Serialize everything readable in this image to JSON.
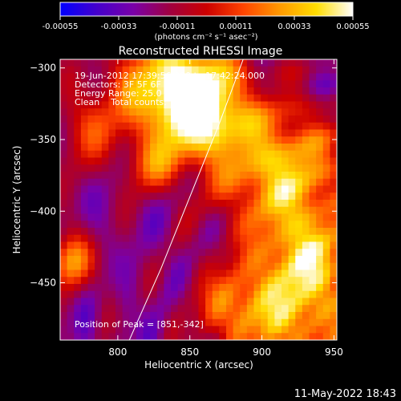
{
  "colorbar": {
    "ticks": [
      "-0.00055",
      "-0.00033",
      "-0.00011",
      "0.00011",
      "0.00033",
      "0.00055"
    ],
    "unit_label": "(photons cm⁻² s⁻¹ asec⁻²)",
    "colors": [
      "#0000ff",
      "#4400cc",
      "#7a00a8",
      "#a00040",
      "#cc0000",
      "#ff4400",
      "#ff9900",
      "#ffdd00",
      "#ffffff"
    ]
  },
  "chart_data": {
    "type": "heatmap",
    "title": "Reconstructed RHESSI Image",
    "xlabel": "Heliocentric X (arcsec)",
    "ylabel": "Heliocentric Y (arcsec)",
    "xlim": [
      760,
      952
    ],
    "ylim": [
      -490,
      -294
    ],
    "x_ticks": [
      800,
      850,
      900,
      950
    ],
    "y_ticks": [
      -300,
      -350,
      -400,
      -450
    ],
    "x_tick_labels": [
      "800",
      "850",
      "900",
      "950"
    ],
    "y_tick_labels": [
      "−300",
      "−350",
      "−400",
      "−450"
    ],
    "annotations": {
      "time_range": "19-Jun-2012 17:39:56.000 to 17:42:24.000",
      "detectors": "Detectors: 3F 5F 6F 7F 8F, Att 0",
      "energy_range": "Energy Range: 25.0 - 50.0 keV",
      "method": "Clean    Total counts: 7.45E+03",
      "peak": "Position of Peak = [851,-342]"
    },
    "limb_points": [
      [
        808,
        -490
      ],
      [
        830,
        -440
      ],
      [
        850,
        -390
      ],
      [
        870,
        -340
      ],
      [
        887,
        -294
      ]
    ]
  },
  "footer": {
    "date": "11-May-2022 18:43"
  }
}
